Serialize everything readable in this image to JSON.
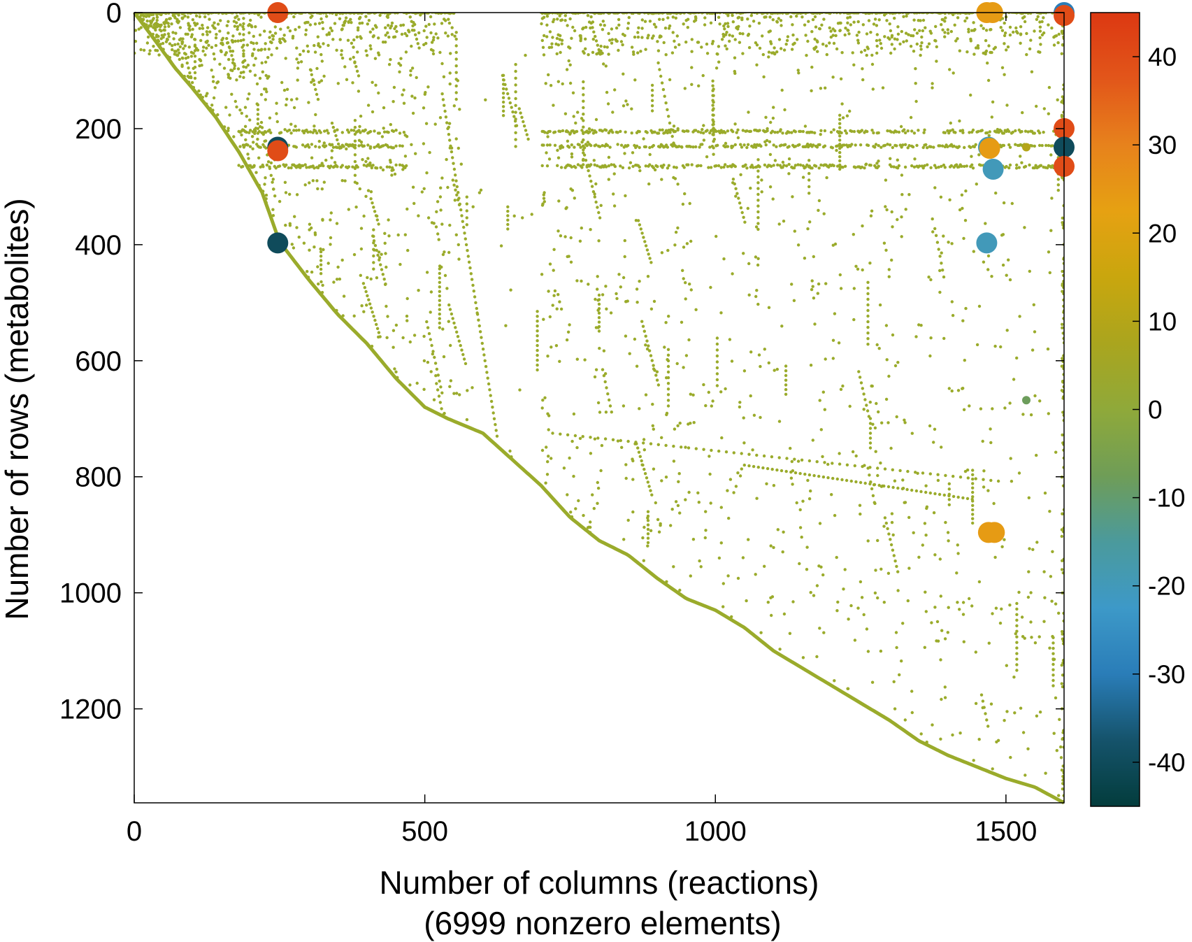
{
  "chart_data": {
    "type": "scatter",
    "plot": "sparsity pattern of a stoichiometric matrix",
    "xlabel_lines": [
      "Number of columns (reactions)",
      "(6999 nonzero elements)"
    ],
    "ylabel": "Number of rows (metabolites)",
    "xlim": [
      0,
      1600
    ],
    "ylim": [
      1362,
      0
    ],
    "y_reversed": true,
    "grid": false,
    "x_ticks": [
      0,
      500,
      1000,
      1500
    ],
    "y_ticks": [
      0,
      200,
      400,
      600,
      800,
      1000,
      1200
    ],
    "colorbar": {
      "position": "right",
      "range": [
        -45,
        45
      ],
      "ticks": [
        40,
        30,
        20,
        10,
        0,
        -10,
        -20,
        -30,
        -40
      ],
      "colors": [
        "#033c3c",
        "#15536b",
        "#2a7db8",
        "#3d99c8",
        "#4b9a9c",
        "#6f9d57",
        "#8fa93a",
        "#aaa51e",
        "#c9a60e",
        "#e6a112",
        "#e7821c",
        "#e2561a",
        "#dc3812"
      ]
    },
    "base_color": "#9aab2b",
    "n_columns": 1600,
    "n_rows": 1362,
    "nonzero_count": 6999,
    "diagonal_boundary": [
      [
        0,
        0
      ],
      [
        30,
        40
      ],
      [
        70,
        95
      ],
      [
        100,
        130
      ],
      [
        140,
        180
      ],
      [
        180,
        240
      ],
      [
        220,
        310
      ],
      [
        250,
        395
      ],
      [
        300,
        460
      ],
      [
        350,
        520
      ],
      [
        400,
        570
      ],
      [
        450,
        630
      ],
      [
        500,
        680
      ],
      [
        540,
        700
      ],
      [
        600,
        725
      ],
      [
        650,
        770
      ],
      [
        700,
        815
      ],
      [
        750,
        870
      ],
      [
        800,
        910
      ],
      [
        850,
        935
      ],
      [
        900,
        975
      ],
      [
        950,
        1010
      ],
      [
        1000,
        1030
      ],
      [
        1050,
        1060
      ],
      [
        1100,
        1100
      ],
      [
        1150,
        1130
      ],
      [
        1200,
        1160
      ],
      [
        1250,
        1190
      ],
      [
        1300,
        1220
      ],
      [
        1350,
        1255
      ],
      [
        1400,
        1280
      ],
      [
        1450,
        1300
      ],
      [
        1500,
        1320
      ],
      [
        1550,
        1335
      ],
      [
        1600,
        1362
      ]
    ],
    "dense_rows": [
      {
        "row": 0,
        "x_ranges": [
          [
            0,
            550
          ],
          [
            700,
            1600
          ]
        ]
      },
      {
        "row": 205,
        "x_ranges": [
          [
            180,
            460
          ],
          [
            700,
            1600
          ]
        ]
      },
      {
        "row": 230,
        "x_ranges": [
          [
            180,
            470
          ],
          [
            700,
            1600
          ]
        ]
      },
      {
        "row": 265,
        "x_ranges": [
          [
            180,
            470
          ],
          [
            700,
            1600
          ]
        ]
      }
    ],
    "large_entries": [
      {
        "x": 247,
        "y": 0,
        "value": 40
      },
      {
        "x": 247,
        "y": 232,
        "value": -40
      },
      {
        "x": 247,
        "y": 238,
        "value": 40
      },
      {
        "x": 247,
        "y": 397,
        "value": -40
      },
      {
        "x": 1467,
        "y": 0,
        "value": 24
      },
      {
        "x": 1477,
        "y": 0,
        "value": 24
      },
      {
        "x": 1470,
        "y": 232,
        "value": -20
      },
      {
        "x": 1472,
        "y": 234,
        "value": 24
      },
      {
        "x": 1478,
        "y": 270,
        "value": -20
      },
      {
        "x": 1467,
        "y": 397,
        "value": -20
      },
      {
        "x": 1470,
        "y": 896,
        "value": 24
      },
      {
        "x": 1480,
        "y": 896,
        "value": 24
      },
      {
        "x": 1600,
        "y": 0,
        "value": -30
      },
      {
        "x": 1600,
        "y": 5,
        "value": 40
      },
      {
        "x": 1600,
        "y": 200,
        "value": 40
      },
      {
        "x": 1600,
        "y": 232,
        "value": -40
      },
      {
        "x": 1600,
        "y": 265,
        "value": 40
      },
      {
        "x": 1535,
        "y": 668,
        "value": -8
      },
      {
        "x": 1535,
        "y": 232,
        "value": 10
      }
    ]
  }
}
